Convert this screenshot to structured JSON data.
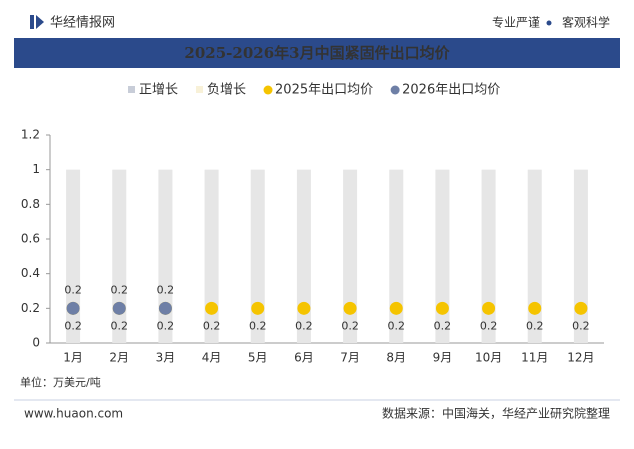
{
  "header": {
    "brand": "华经情报网",
    "slogan_left": "专业严谨",
    "slogan_right": "客观科学"
  },
  "chart_data": {
    "type": "combo",
    "title": "2025-2026年3月中国紧固件出口均价",
    "categories": [
      "1月",
      "2月",
      "3月",
      "4月",
      "5月",
      "6月",
      "7月",
      "8月",
      "9月",
      "10月",
      "11月",
      "12月"
    ],
    "series": [
      {
        "name": "正增长",
        "type": "bar",
        "color": "#e6e6e6",
        "values": [
          1,
          1,
          1,
          1,
          1,
          1,
          1,
          1,
          1,
          1,
          1,
          1
        ]
      },
      {
        "name": "负增长",
        "type": "bar",
        "color": "#f8f1d8",
        "values": [
          null,
          null,
          null,
          null,
          null,
          null,
          null,
          null,
          null,
          null,
          null,
          null
        ]
      },
      {
        "name": "2025年出口均价",
        "type": "scatter",
        "color": "#f5c400",
        "label_side": "below",
        "values": [
          0.2,
          0.2,
          0.2,
          0.2,
          0.2,
          0.2,
          0.2,
          0.2,
          0.2,
          0.2,
          0.2,
          0.2
        ]
      },
      {
        "name": "2026年出口均价",
        "type": "scatter",
        "color": "#6e7fa6",
        "label_side": "above",
        "values": [
          0.2,
          0.2,
          0.2,
          null,
          null,
          null,
          null,
          null,
          null,
          null,
          null,
          null
        ]
      }
    ],
    "ylim": [
      0,
      1.2
    ],
    "yticks": [
      0,
      0.2,
      0.4,
      0.6,
      0.8,
      1,
      1.2
    ],
    "unit": "单位：万美元/吨"
  },
  "footer": {
    "website": "www.huaon.com",
    "source": "数据来源：中国海关，华经产业研究院整理"
  }
}
